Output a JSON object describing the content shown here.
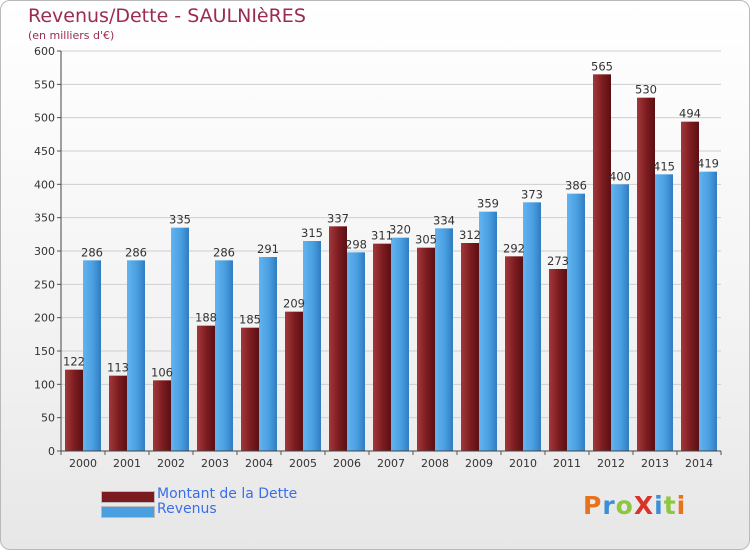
{
  "title": "Revenus/Dette - SAULNIèRES",
  "subtitle": "(en milliers d'€)",
  "logo": "ProXiti",
  "colors": {
    "dette": "#7b1b1f",
    "revenus": "#4a9fe0",
    "text": "#9b2a55",
    "legend_text": "#3a6ee8",
    "grid": "#cccccc"
  },
  "chart_data": {
    "type": "bar",
    "categories": [
      "2000",
      "2001",
      "2002",
      "2003",
      "2004",
      "2005",
      "2006",
      "2007",
      "2008",
      "2009",
      "2010",
      "2011",
      "2012",
      "2013",
      "2014"
    ],
    "series": [
      {
        "name": "Montant de la Dette",
        "values": [
          122,
          113,
          106,
          188,
          185,
          209,
          337,
          311,
          305,
          312,
          292,
          273,
          565,
          530,
          494
        ]
      },
      {
        "name": "Revenus",
        "values": [
          286,
          286,
          335,
          286,
          291,
          315,
          298,
          320,
          334,
          359,
          373,
          386,
          400,
          415,
          419
        ]
      }
    ],
    "ylim": [
      0,
      600
    ],
    "yticks": [
      "0",
      "50",
      "100",
      "150",
      "200",
      "250",
      "300",
      "350",
      "400",
      "450",
      "500",
      "550",
      "600"
    ],
    "grid": true,
    "legend_position": "bottom-left"
  }
}
